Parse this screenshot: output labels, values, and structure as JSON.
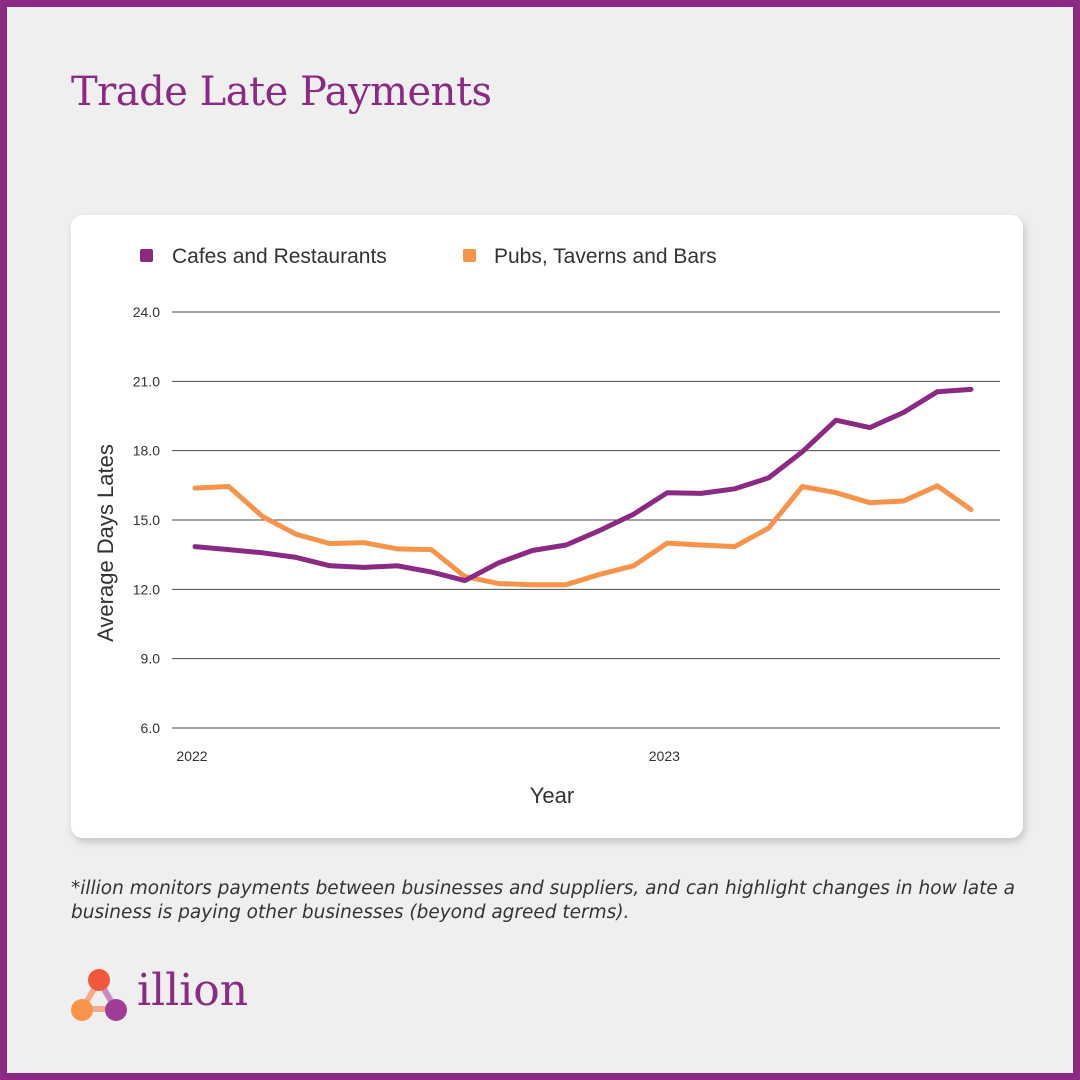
{
  "title": "Trade Late Payments",
  "footnote": "*illion monitors payments between businesses and suppliers, and can highlight changes in how late a business is paying other businesses (beyond agreed terms).",
  "brand": {
    "name": "illion",
    "color": "#8a2a82"
  },
  "chart_data": {
    "type": "line",
    "xlabel": "Year",
    "ylabel": "Average Days Lates",
    "ylim": [
      6,
      24
    ],
    "yticks": [
      "24.0",
      "21.0",
      "18.0",
      "15.0",
      "12.0",
      "9.0",
      "6.0"
    ],
    "xtick_labels": [
      {
        "label": "2022",
        "index": 0
      },
      {
        "label": "2023",
        "index": 14
      }
    ],
    "grid": true,
    "legend_position": "top-left",
    "series": [
      {
        "name": "Cafes and Restaurants",
        "color": "#8a2a82",
        "values": [
          13.85,
          13.72,
          13.58,
          13.38,
          13.02,
          12.95,
          13.02,
          12.75,
          12.38,
          13.15,
          13.68,
          13.92,
          14.55,
          15.25,
          16.18,
          16.15,
          16.35,
          16.82,
          17.95,
          19.32,
          19.0,
          19.65,
          20.55,
          20.65
        ]
      },
      {
        "name": "Pubs, Taverns and Bars",
        "color": "#f7944a",
        "values": [
          16.38,
          16.45,
          15.15,
          14.38,
          13.98,
          14.02,
          13.75,
          13.72,
          12.55,
          12.25,
          12.2,
          12.2,
          12.65,
          13.02,
          14.0,
          13.92,
          13.85,
          14.65,
          16.45,
          16.18,
          15.75,
          15.82,
          16.48,
          15.45
        ]
      }
    ]
  }
}
